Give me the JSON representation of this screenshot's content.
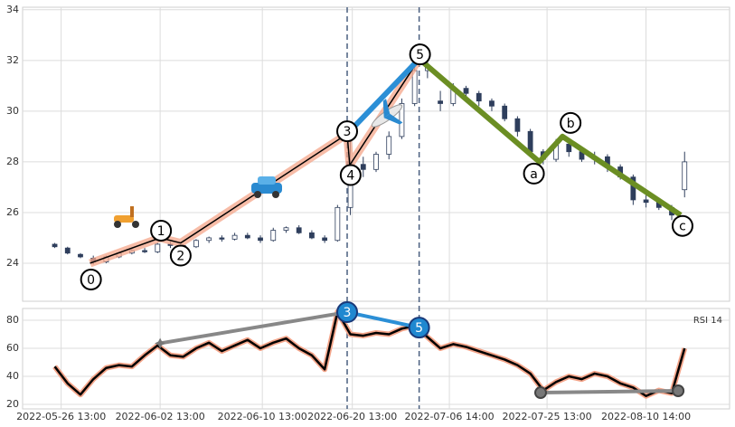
{
  "chart_data": [
    {
      "type": "candlestick",
      "xlim": [
        -5,
        105
      ],
      "ylim": [
        22.5,
        34.1
      ],
      "yticks": [
        24,
        26,
        28,
        30,
        32,
        34
      ],
      "grid": true,
      "up_color": "#ffffff",
      "down_color": "#2e3e5c",
      "edge_color": "#2e3e5c",
      "x": [
        0,
        2,
        4,
        6,
        8,
        10,
        12,
        14,
        16,
        18,
        20,
        22,
        24,
        26,
        28,
        30,
        32,
        34,
        36,
        38,
        40,
        42,
        44,
        46,
        48,
        50,
        52,
        54,
        56,
        58,
        60,
        62,
        64,
        66,
        68,
        70,
        72,
        74,
        76,
        78,
        80,
        82,
        84,
        86,
        88,
        90,
        92,
        94,
        96,
        98
      ],
      "candles": [
        [
          24.75,
          24.8,
          24.6,
          24.65
        ],
        [
          24.6,
          24.65,
          24.35,
          24.4
        ],
        [
          24.35,
          24.4,
          24.2,
          24.25
        ],
        [
          24.2,
          24.3,
          23.95,
          24.05
        ],
        [
          24.05,
          24.3,
          24.0,
          24.25
        ],
        [
          24.25,
          24.45,
          24.2,
          24.4
        ],
        [
          24.4,
          24.55,
          24.35,
          24.5
        ],
        [
          24.5,
          24.6,
          24.4,
          24.45
        ],
        [
          24.45,
          24.8,
          24.4,
          24.75
        ],
        [
          24.75,
          24.85,
          24.6,
          24.7
        ],
        [
          24.7,
          24.75,
          24.5,
          24.6
        ],
        [
          24.65,
          24.95,
          24.6,
          24.9
        ],
        [
          24.9,
          25.05,
          24.8,
          25.0
        ],
        [
          25.0,
          25.1,
          24.85,
          24.95
        ],
        [
          24.95,
          25.2,
          24.9,
          25.1
        ],
        [
          25.1,
          25.2,
          24.95,
          25.0
        ],
        [
          25.0,
          25.1,
          24.8,
          24.9
        ],
        [
          24.9,
          25.4,
          24.85,
          25.3
        ],
        [
          25.3,
          25.45,
          25.2,
          25.4
        ],
        [
          25.4,
          25.5,
          25.15,
          25.2
        ],
        [
          25.2,
          25.3,
          24.95,
          25.0
        ],
        [
          25.0,
          25.1,
          24.8,
          24.9
        ],
        [
          24.9,
          26.3,
          24.85,
          26.2
        ],
        [
          26.2,
          28.9,
          25.9,
          28.0
        ],
        [
          27.9,
          28.2,
          27.4,
          27.7
        ],
        [
          27.7,
          28.4,
          27.6,
          28.3
        ],
        [
          28.3,
          29.2,
          28.1,
          29.0
        ],
        [
          29.0,
          30.5,
          28.9,
          30.3
        ],
        [
          30.3,
          32.1,
          30.2,
          31.6
        ],
        [
          31.6,
          32.0,
          31.3,
          31.8
        ],
        [
          30.4,
          30.8,
          30.0,
          30.3
        ],
        [
          30.3,
          31.1,
          30.2,
          30.9
        ],
        [
          30.9,
          31.0,
          30.5,
          30.7
        ],
        [
          30.7,
          30.8,
          30.2,
          30.4
        ],
        [
          30.4,
          30.5,
          30.0,
          30.2
        ],
        [
          30.2,
          30.3,
          29.6,
          29.7
        ],
        [
          29.7,
          29.8,
          29.0,
          29.2
        ],
        [
          29.2,
          29.3,
          28.2,
          28.4
        ],
        [
          28.4,
          28.5,
          27.9,
          28.1
        ],
        [
          28.1,
          28.9,
          28.0,
          28.7
        ],
        [
          28.7,
          28.8,
          28.2,
          28.4
        ],
        [
          28.4,
          28.5,
          28.0,
          28.1
        ],
        [
          28.1,
          28.4,
          27.9,
          28.2
        ],
        [
          28.2,
          28.3,
          27.6,
          27.8
        ],
        [
          27.8,
          27.9,
          27.3,
          27.4
        ],
        [
          27.4,
          27.5,
          26.3,
          26.5
        ],
        [
          26.5,
          26.7,
          26.2,
          26.4
        ],
        [
          26.4,
          26.5,
          26.1,
          26.2
        ],
        [
          26.2,
          26.3,
          25.7,
          25.9
        ],
        [
          26.9,
          28.4,
          26.6,
          28.0
        ]
      ],
      "vlines": [
        45.5,
        56.7
      ],
      "vline_color": "#4a5f80",
      "impulse": {
        "color": "#000000",
        "band_color": "#f4a58a",
        "points": [
          {
            "label": "0",
            "x": 5.5,
            "y": 24.0
          },
          {
            "label": "1",
            "x": 16.4,
            "y": 25.0
          },
          {
            "label": "2",
            "x": 19.6,
            "y": 24.8
          },
          {
            "label": "3",
            "x": 45.5,
            "y": 29.1
          },
          {
            "label": "4",
            "x": 45.9,
            "y": 27.87
          },
          {
            "label": "5",
            "x": 56.7,
            "y": 32.06
          }
        ]
      },
      "trend": {
        "color": "#2b8fd6",
        "x": [
          45.5,
          56.7
        ],
        "y": [
          29.1,
          32.06
        ]
      },
      "correction": {
        "color": "#6b8e23",
        "points": [
          {
            "x": 56.7,
            "y": 32.06
          },
          {
            "label": "a",
            "x": 75.4,
            "y": 28.0
          },
          {
            "label": "b",
            "x": 79.0,
            "y": 29.0
          },
          {
            "label": "c",
            "x": 97.4,
            "y": 25.9
          }
        ]
      }
    },
    {
      "type": "line",
      "annotation": "RSI 14",
      "xlim": [
        -5,
        105
      ],
      "ylim": [
        16.8,
        88.4
      ],
      "yticks": [
        20,
        40,
        60,
        80
      ],
      "grid": true,
      "xticks": [
        {
          "value": 1,
          "label": "2022-05-26 13:00"
        },
        {
          "value": 16.4,
          "label": "2022-06-02 13:00"
        },
        {
          "value": 32.3,
          "label": "2022-06-10 13:00"
        },
        {
          "value": 46.3,
          "label": "2022-06-20 13:00"
        },
        {
          "value": 61.4,
          "label": "2022-07-06 14:00"
        },
        {
          "value": 76.6,
          "label": "2022-07-25 13:00"
        },
        {
          "value": 92,
          "label": "2022-08-10 14:00"
        }
      ],
      "color": "#000000",
      "band_color": "#f4a58a",
      "x": [
        0,
        2,
        4,
        6,
        8,
        10,
        12,
        14,
        16,
        18,
        20,
        22,
        24,
        26,
        28,
        30,
        32,
        34,
        36,
        38,
        40,
        42,
        44,
        46,
        48,
        50,
        52,
        54,
        56,
        58,
        60,
        62,
        64,
        66,
        68,
        70,
        72,
        74,
        76,
        78,
        80,
        82,
        84,
        86,
        88,
        90,
        92,
        94,
        96,
        98
      ],
      "values": [
        47,
        35,
        27,
        38,
        46,
        48,
        47,
        55,
        62,
        55,
        54,
        60,
        64,
        58,
        62,
        66,
        60,
        64,
        67,
        60,
        55,
        45,
        86,
        70,
        69,
        71,
        70,
        74,
        76,
        68,
        60,
        63,
        61,
        58,
        55,
        52,
        48,
        42,
        30,
        36,
        40,
        38,
        42,
        40,
        35,
        32,
        26,
        30,
        28,
        60
      ],
      "divergences": [
        {
          "color": "#888888",
          "marker": "star",
          "points": [
            {
              "x": 16.4,
              "y": 63.6
            },
            {
              "x": 45.5,
              "y": 85.8
            }
          ]
        },
        {
          "color": "#2b8fd6",
          "marker": "label",
          "points": [
            {
              "label": "3",
              "x": 45.5,
              "y": 85.8
            },
            {
              "label": "5",
              "x": 56.7,
              "y": 74.8
            }
          ]
        },
        {
          "color": "#888888",
          "marker": "circle",
          "points": [
            {
              "x": 75.6,
              "y": 28.4
            },
            {
              "x": 97.0,
              "y": 29.7
            }
          ]
        }
      ]
    }
  ]
}
